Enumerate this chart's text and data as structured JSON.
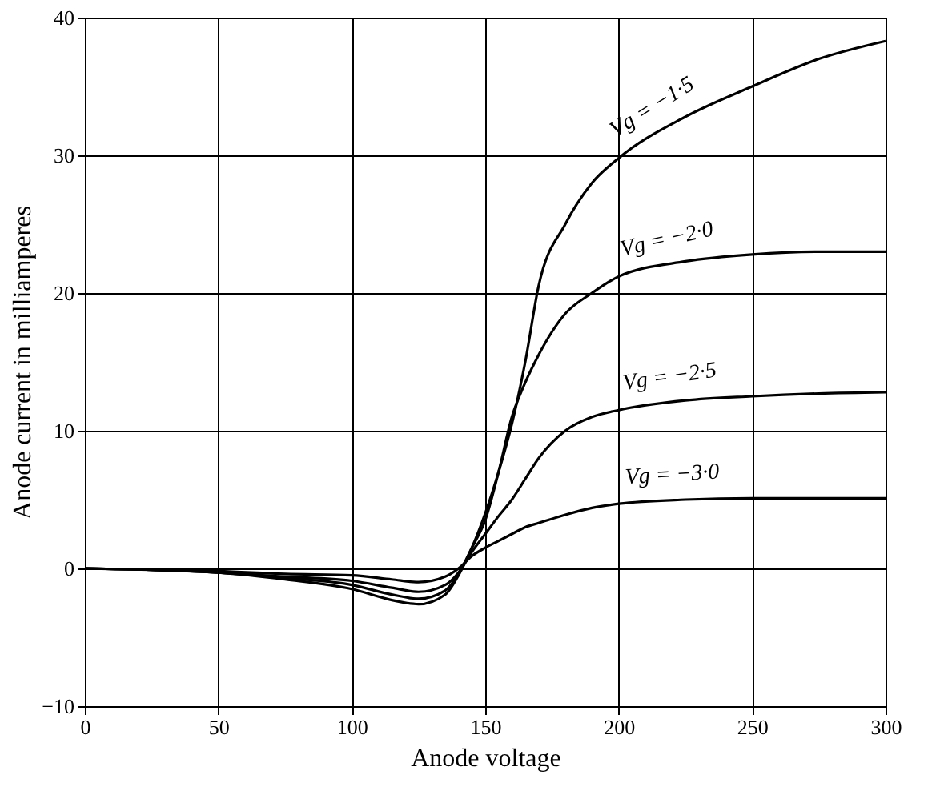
{
  "chart_data": {
    "type": "line",
    "xlabel": "Anode voltage",
    "ylabel": "Anode current in milliamperes",
    "x": [
      0,
      25,
      50,
      75,
      100,
      115,
      125,
      135,
      140,
      145,
      150,
      155,
      160,
      165,
      170,
      180,
      190,
      200,
      225,
      250,
      275,
      300
    ],
    "series": [
      {
        "name": "Vg = −1·5",
        "color": "#000000",
        "values": [
          0,
          -0.1,
          -0.3,
          -0.8,
          -1.5,
          -2.3,
          -2.6,
          -1.9,
          -0.5,
          1.5,
          4,
          7,
          10.5,
          15,
          20.5,
          25,
          28,
          29.8,
          32.8,
          35,
          37,
          38.3
        ]
      },
      {
        "name": "Vg = −2·0",
        "color": "#000000",
        "values": [
          0,
          -0.1,
          -0.3,
          -0.7,
          -1.2,
          -1.9,
          -2.2,
          -1.6,
          -0.4,
          1.5,
          3.5,
          7,
          11,
          13.5,
          15.5,
          18.5,
          20,
          21.2,
          22.3,
          22.8,
          23,
          23
        ]
      },
      {
        "name": "Vg = −2·5",
        "color": "#000000",
        "values": [
          0,
          -0.1,
          -0.3,
          -0.6,
          -0.9,
          -1.4,
          -1.7,
          -1.2,
          -0.3,
          1.2,
          2.5,
          3.8,
          5,
          6.5,
          8,
          10,
          11,
          11.5,
          12.2,
          12.5,
          12.7,
          12.8
        ]
      },
      {
        "name": "Vg = −3·0",
        "color": "#000000",
        "values": [
          0,
          -0.1,
          -0.2,
          -0.4,
          -0.5,
          -0.8,
          -1,
          -0.6,
          0,
          0.9,
          1.5,
          2,
          2.5,
          3,
          3.3,
          3.9,
          4.4,
          4.7,
          5,
          5.1,
          5.1,
          5.1
        ]
      }
    ],
    "xlim": [
      0,
      300
    ],
    "xticks": [
      0,
      50,
      100,
      150,
      200,
      250,
      300
    ],
    "ylim": [
      -10,
      40
    ],
    "yticks": [
      -10,
      0,
      10,
      20,
      30,
      40
    ],
    "grid": true,
    "legend": false,
    "marker": "none",
    "line_style": "solid"
  }
}
